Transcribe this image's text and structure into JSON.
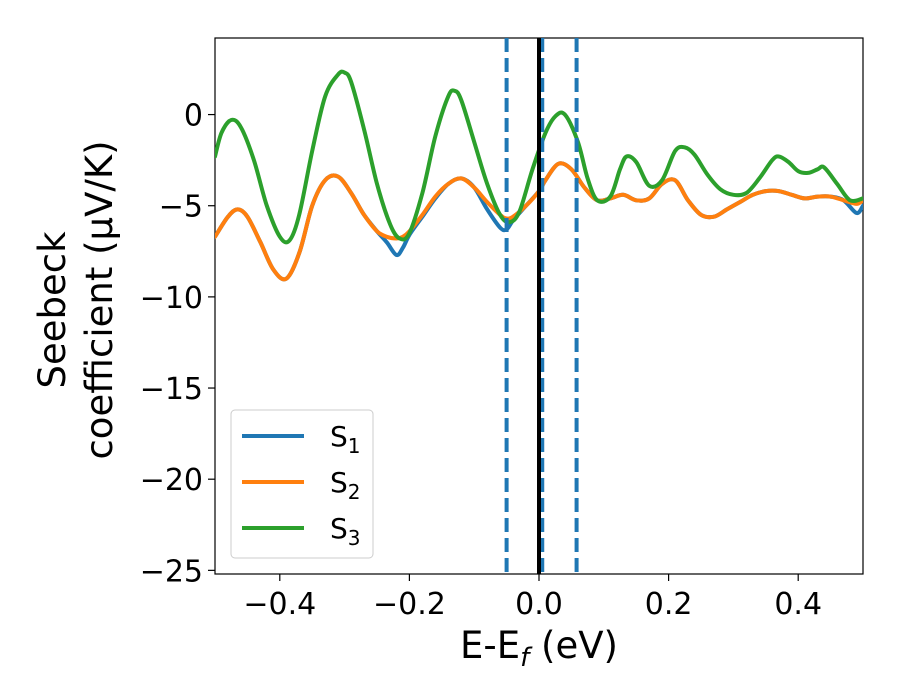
{
  "chart_data": {
    "type": "line",
    "xlabel_base": "E-E",
    "xlabel_sub": "f",
    "xlabel_unit": " (eV)",
    "ylabel_line1": "Seebeck",
    "ylabel_line2": "coefficient  (μV/K)",
    "xlim": [
      -0.5,
      0.5
    ],
    "ylim": [
      -25.2,
      4.2
    ],
    "xticks": [
      -0.4,
      -0.2,
      0.0,
      0.2,
      0.4
    ],
    "xtick_labels": [
      "−0.4",
      "−0.2",
      "0.0",
      "0.2",
      "0.4"
    ],
    "yticks": [
      0,
      -5,
      -10,
      -15,
      -20,
      -25
    ],
    "ytick_labels": [
      "0",
      "−5",
      "−10",
      "−15",
      "−20",
      "−25"
    ],
    "grid": false,
    "legend_position": "lower-left",
    "vertical_lines": [
      {
        "x": -0.05,
        "style": "dashed",
        "color": "#1f77b4"
      },
      {
        "x": 0.005,
        "style": "dashed",
        "color": "#1f77b4"
      },
      {
        "x": 0.058,
        "style": "dashed",
        "color": "#1f77b4"
      },
      {
        "x": 0.0,
        "style": "solid",
        "color": "#000000"
      }
    ],
    "series": [
      {
        "name": "S",
        "sub": "1",
        "color": "#1f77b4",
        "x": [
          -0.5,
          -0.48,
          -0.465,
          -0.45,
          -0.43,
          -0.41,
          -0.39,
          -0.37,
          -0.35,
          -0.33,
          -0.31,
          -0.29,
          -0.27,
          -0.25,
          -0.235,
          -0.22,
          -0.21,
          -0.2,
          -0.18,
          -0.16,
          -0.14,
          -0.12,
          -0.1,
          -0.08,
          -0.06,
          -0.05,
          -0.04,
          -0.02,
          0.0,
          0.01,
          0.03,
          0.05,
          0.07,
          0.09,
          0.11,
          0.13,
          0.15,
          0.17,
          0.19,
          0.21,
          0.23,
          0.25,
          0.27,
          0.29,
          0.31,
          0.33,
          0.35,
          0.37,
          0.39,
          0.41,
          0.43,
          0.45,
          0.47,
          0.49,
          0.5
        ],
        "y": [
          -6.7,
          -5.6,
          -5.2,
          -5.6,
          -7.0,
          -8.5,
          -9.0,
          -7.6,
          -5.0,
          -3.6,
          -3.4,
          -4.3,
          -5.5,
          -6.4,
          -7.0,
          -7.7,
          -7.3,
          -6.6,
          -5.6,
          -4.6,
          -3.8,
          -3.5,
          -4.0,
          -5.2,
          -6.2,
          -6.3,
          -5.8,
          -5.0,
          -4.2,
          -3.6,
          -2.7,
          -3.0,
          -4.0,
          -4.7,
          -4.6,
          -4.4,
          -4.7,
          -4.6,
          -3.8,
          -3.6,
          -4.7,
          -5.5,
          -5.6,
          -5.2,
          -4.8,
          -4.4,
          -4.2,
          -4.2,
          -4.4,
          -4.6,
          -4.5,
          -4.5,
          -4.7,
          -5.4,
          -5.0
        ]
      },
      {
        "name": "S",
        "sub": "2",
        "color": "#ff7f0e",
        "x": [
          -0.5,
          -0.48,
          -0.465,
          -0.45,
          -0.43,
          -0.41,
          -0.39,
          -0.37,
          -0.35,
          -0.33,
          -0.31,
          -0.29,
          -0.27,
          -0.25,
          -0.235,
          -0.22,
          -0.21,
          -0.2,
          -0.18,
          -0.16,
          -0.14,
          -0.12,
          -0.1,
          -0.08,
          -0.06,
          -0.05,
          -0.04,
          -0.02,
          0.0,
          0.01,
          0.03,
          0.05,
          0.07,
          0.09,
          0.11,
          0.13,
          0.15,
          0.17,
          0.19,
          0.21,
          0.23,
          0.25,
          0.27,
          0.29,
          0.31,
          0.33,
          0.35,
          0.37,
          0.39,
          0.41,
          0.43,
          0.45,
          0.47,
          0.49,
          0.5
        ],
        "y": [
          -6.7,
          -5.6,
          -5.2,
          -5.6,
          -7.0,
          -8.5,
          -9.0,
          -7.6,
          -5.0,
          -3.6,
          -3.4,
          -4.3,
          -5.5,
          -6.4,
          -6.7,
          -6.8,
          -6.7,
          -6.4,
          -5.5,
          -4.5,
          -3.8,
          -3.5,
          -4.0,
          -4.8,
          -5.5,
          -5.7,
          -5.6,
          -5.0,
          -4.2,
          -3.6,
          -2.7,
          -3.0,
          -4.0,
          -4.7,
          -4.6,
          -4.4,
          -4.7,
          -4.6,
          -3.8,
          -3.6,
          -4.7,
          -5.5,
          -5.6,
          -5.2,
          -4.8,
          -4.4,
          -4.2,
          -4.2,
          -4.4,
          -4.6,
          -4.5,
          -4.5,
          -4.7,
          -4.9,
          -4.7
        ]
      },
      {
        "name": "S",
        "sub": "3",
        "color": "#2ca02c",
        "x": [
          -0.5,
          -0.49,
          -0.475,
          -0.46,
          -0.44,
          -0.42,
          -0.4,
          -0.385,
          -0.37,
          -0.35,
          -0.33,
          -0.31,
          -0.3,
          -0.29,
          -0.27,
          -0.25,
          -0.23,
          -0.215,
          -0.2,
          -0.18,
          -0.16,
          -0.14,
          -0.13,
          -0.12,
          -0.1,
          -0.08,
          -0.06,
          -0.045,
          -0.03,
          -0.01,
          0.01,
          0.025,
          0.04,
          0.06,
          0.075,
          0.09,
          0.11,
          0.125,
          0.135,
          0.15,
          0.17,
          0.19,
          0.21,
          0.225,
          0.24,
          0.26,
          0.28,
          0.3,
          0.32,
          0.34,
          0.36,
          0.37,
          0.385,
          0.4,
          0.415,
          0.43,
          0.44,
          0.46,
          0.48,
          0.5
        ],
        "y": [
          -2.3,
          -1.0,
          -0.3,
          -0.7,
          -2.5,
          -5.0,
          -6.7,
          -6.9,
          -5.5,
          -2.0,
          1.0,
          2.2,
          2.3,
          1.8,
          -0.8,
          -3.8,
          -6.0,
          -6.8,
          -6.5,
          -4.3,
          -1.2,
          1.0,
          1.3,
          0.8,
          -1.5,
          -3.8,
          -5.5,
          -5.9,
          -5.3,
          -3.0,
          -1.0,
          -0.1,
          0.0,
          -1.5,
          -3.5,
          -4.7,
          -4.5,
          -3.0,
          -2.3,
          -2.6,
          -3.9,
          -3.6,
          -2.0,
          -1.8,
          -2.2,
          -3.3,
          -4.1,
          -4.4,
          -4.3,
          -3.5,
          -2.5,
          -2.3,
          -2.6,
          -3.1,
          -3.2,
          -3.0,
          -2.9,
          -3.8,
          -4.7,
          -4.6
        ]
      }
    ]
  }
}
